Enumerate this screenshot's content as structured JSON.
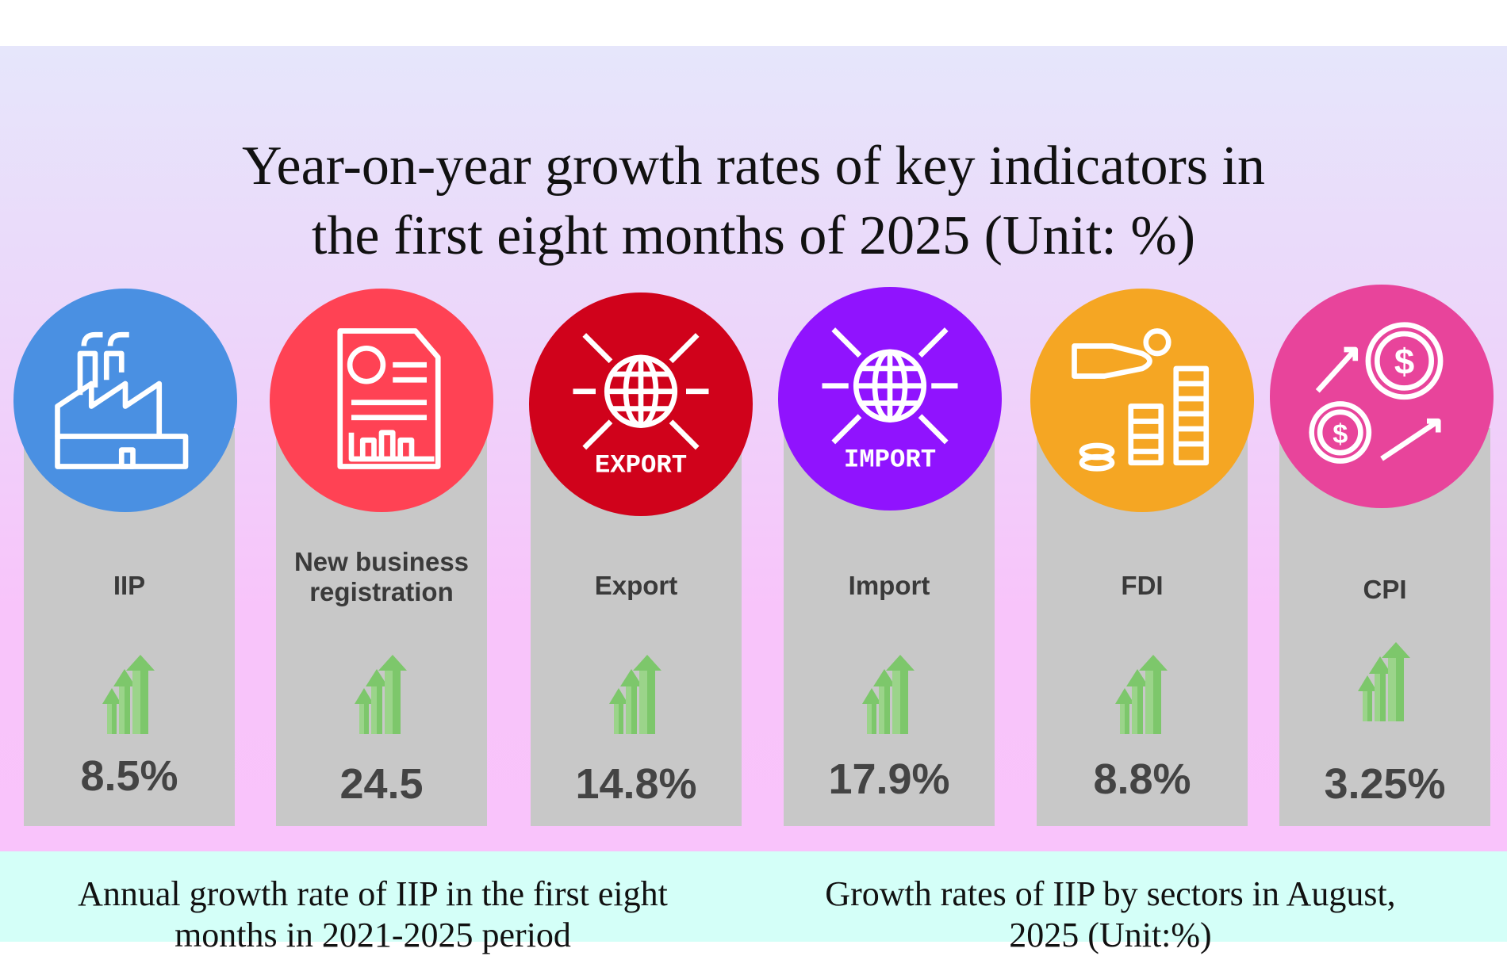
{
  "title": {
    "line1": "Year-on-year growth rates of  key indicators in",
    "line2": "the first eight months of 2025 (Unit: %)"
  },
  "indicators": [
    {
      "label": "IIP",
      "value": "8.5%",
      "color": "#4a90e2",
      "icon": "factory-icon"
    },
    {
      "label": "New business registration",
      "value": "24.5",
      "color": "#ff4254",
      "icon": "report-document-icon"
    },
    {
      "label": "Export",
      "value": "14.8%",
      "color": "#d0021b",
      "icon": "export-globe-icon",
      "badge": "EXPORT"
    },
    {
      "label": "Import",
      "value": "17.9%",
      "color": "#9013fe",
      "icon": "import-globe-icon",
      "badge": "IMPORT"
    },
    {
      "label": "FDI",
      "value": "8.8%",
      "color": "#f5a623",
      "icon": "coins-hand-icon"
    },
    {
      "label": "CPI",
      "value": "3.25%",
      "color": "#e8449b",
      "icon": "dollar-coins-rising-icon"
    }
  ],
  "bottom": {
    "left_title": "Annual growth rate of IIP in the first eight months in 2021-2025 period",
    "right_title": "Growth rates of IIP by sectors in August, 2025 (Unit:%)"
  },
  "colors": {
    "card": "#c8c8c8",
    "arrow": "#7dc76b",
    "bottom_band": "#d4fff8"
  }
}
